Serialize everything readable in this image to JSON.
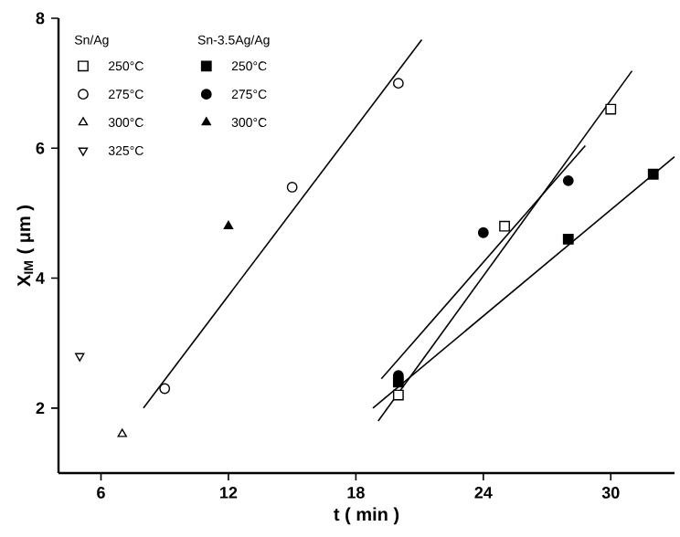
{
  "chart_data": {
    "type": "scatter",
    "xlabel": "t ( min )",
    "ylabel": "X$_{IM}$ ( μm )",
    "xlim": [
      4,
      33
    ],
    "ylim": [
      1,
      8
    ],
    "xticks": [
      6,
      12,
      18,
      24,
      30
    ],
    "yticks": [
      2,
      4,
      6,
      8
    ],
    "grid": false,
    "legend": "top left",
    "annotations": [
      "Sn/Ag",
      "Sn-3.5Ag/Ag"
    ],
    "series": [
      {
        "name": "250°C",
        "marker": "square",
        "color": "#ffffff",
        "x": [
          20,
          25,
          30
        ],
        "values": [
          2.2,
          4.8,
          6.6
        ]
      },
      {
        "name": "275°C",
        "marker": "circle",
        "color": "#ffffff",
        "x": [
          9,
          15,
          20
        ],
        "values": [
          2.3,
          5.4,
          7.0
        ]
      },
      {
        "name": "300°C",
        "marker": "triangle",
        "color": "#ffffff",
        "x": [
          7
        ],
        "values": [
          1.6
        ]
      },
      {
        "name": "325°C",
        "marker": "triangle down",
        "color": "#ffffff",
        "x": [
          5
        ],
        "values": [
          2.8
        ]
      },
      {
        "name": "250°C",
        "marker": "square",
        "color": "#000000",
        "x": [
          20,
          28,
          32
        ],
        "values": [
          2.4,
          4.6,
          5.6
        ]
      },
      {
        "name": "275°C",
        "marker": "circle",
        "color": "#000000",
        "x": [
          20,
          24,
          28
        ],
        "values": [
          2.5,
          4.7,
          5.5
        ]
      },
      {
        "name": "300°C",
        "marker": "triangle",
        "color": "#000000",
        "x": [
          12
        ],
        "values": [
          4.8
        ]
      },
      {
        "type": "line",
        "color": "#000000",
        "x": [
          8,
          21.1
        ],
        "values": [
          2.0,
          7.67
        ]
      },
      {
        "type": "line",
        "color": "#000000",
        "x": [
          19.05,
          31
        ],
        "values": [
          1.8,
          7.19
        ]
      },
      {
        "type": "line",
        "color": "#000000",
        "x": [
          19.2,
          28.8
        ],
        "values": [
          2.45,
          6.04
        ]
      },
      {
        "type": "line",
        "color": "#000000",
        "x": [
          18.8,
          33
        ],
        "values": [
          2.0,
          5.87
        ]
      }
    ]
  }
}
